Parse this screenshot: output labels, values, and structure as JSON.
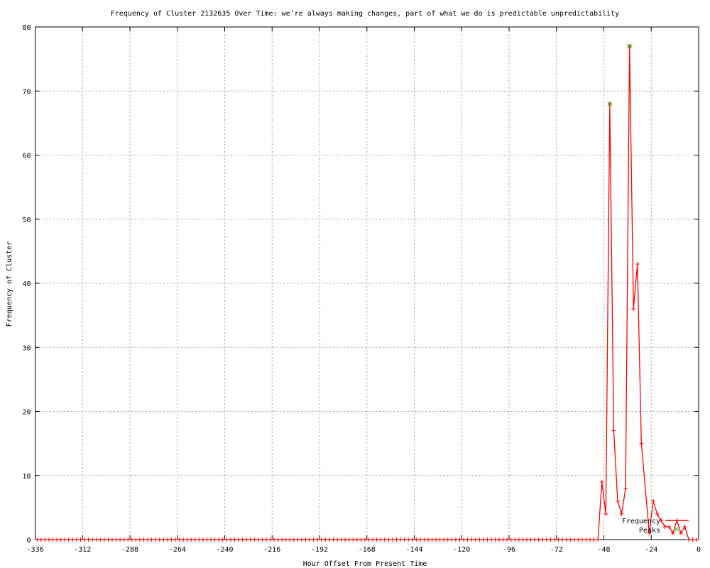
{
  "chart_data": {
    "type": "line",
    "title": "Frequency of Cluster 2132635 Over Time: we’re always making changes, part of what we do is predictable unpredictability",
    "xlabel": "Hour Offset From Present Time",
    "ylabel": "Frequency of Cluster",
    "xlim": [
      -336,
      0
    ],
    "ylim": [
      0,
      80
    ],
    "xticks": [
      -336,
      -312,
      -288,
      -264,
      -240,
      -216,
      -192,
      -168,
      -144,
      -120,
      -96,
      -72,
      -48,
      -24,
      0
    ],
    "yticks": [
      0,
      10,
      20,
      30,
      40,
      50,
      60,
      70,
      80
    ],
    "grid": true,
    "legend_position": "bottom-right",
    "series": [
      {
        "name": "Frequency",
        "color": "#ff0000",
        "zero_range": [
          -335,
          -51,
          2
        ],
        "x": [
          -49,
          -47,
          -45,
          -43,
          -41,
          -39,
          -37,
          -35,
          -33,
          -31,
          -29,
          -25,
          -23,
          -21,
          -19,
          -17,
          -15,
          -13,
          -11,
          -9,
          -7,
          -5,
          -3,
          -1
        ],
        "y": [
          9,
          4,
          68,
          17,
          6,
          4,
          8,
          77,
          36,
          43,
          15,
          1,
          6,
          4,
          3,
          2,
          2,
          1,
          3,
          1,
          2,
          0,
          0,
          0
        ]
      },
      {
        "name": "Peaks",
        "color": "#00c000",
        "x": [
          -45,
          -35
        ],
        "y": [
          68,
          77
        ]
      }
    ]
  }
}
